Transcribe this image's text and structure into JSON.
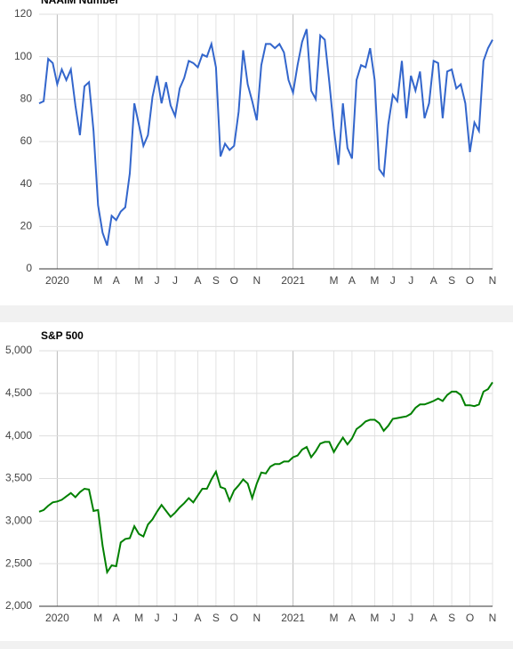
{
  "chart_data": [
    {
      "type": "line",
      "title": "NAAIM Number",
      "color": "#3366cc",
      "grid": true,
      "categories": [
        null,
        null,
        null,
        null,
        "2020",
        null,
        null,
        null,
        null,
        null,
        null,
        null,
        null,
        "M",
        null,
        null,
        null,
        "A",
        null,
        null,
        null,
        null,
        "M",
        null,
        null,
        null,
        "J",
        null,
        null,
        null,
        "J",
        null,
        null,
        null,
        null,
        "A",
        null,
        null,
        null,
        "S",
        null,
        null,
        null,
        "O",
        null,
        null,
        null,
        null,
        "N",
        null,
        null,
        null,
        null,
        null,
        null,
        null,
        "2021",
        null,
        null,
        null,
        null,
        null,
        null,
        null,
        null,
        "M",
        null,
        null,
        null,
        "A",
        null,
        null,
        null,
        null,
        "M",
        null,
        null,
        null,
        "J",
        null,
        null,
        null,
        "J",
        null,
        null,
        null,
        null,
        "A",
        null,
        null,
        null,
        "S",
        null,
        null,
        null,
        "O",
        null,
        null,
        null,
        null,
        "N"
      ],
      "values": [
        78,
        79,
        99,
        97,
        87,
        94,
        89,
        94,
        77,
        63,
        86,
        88,
        65,
        30,
        17,
        11,
        25,
        23,
        27,
        29,
        45,
        78,
        68,
        58,
        63,
        81,
        91,
        78,
        88,
        77,
        72,
        85,
        90,
        98,
        97,
        95,
        101,
        100,
        106,
        95,
        53,
        59,
        56,
        58,
        74,
        103,
        87,
        79,
        70,
        96,
        106,
        106,
        104,
        106,
        102,
        89,
        83,
        96,
        107,
        113,
        84,
        80,
        110,
        108,
        88,
        66,
        49,
        78,
        57,
        52,
        89,
        96,
        95,
        104,
        89,
        47,
        44,
        68,
        82,
        79,
        98,
        71,
        91,
        84,
        93,
        71,
        78,
        98,
        97,
        71,
        93,
        94,
        85,
        87,
        78,
        55,
        69,
        65,
        98,
        104,
        108
      ],
      "ylim": [
        0,
        120
      ],
      "yticks": [
        0,
        20,
        40,
        60,
        80,
        100,
        120
      ]
    },
    {
      "type": "line",
      "title": "S&P 500",
      "color": "#008000",
      "grid": true,
      "categories": [
        null,
        null,
        null,
        null,
        "2020",
        null,
        null,
        null,
        null,
        null,
        null,
        null,
        null,
        "M",
        null,
        null,
        null,
        "A",
        null,
        null,
        null,
        null,
        "M",
        null,
        null,
        null,
        "J",
        null,
        null,
        null,
        "J",
        null,
        null,
        null,
        null,
        "A",
        null,
        null,
        null,
        "S",
        null,
        null,
        null,
        "O",
        null,
        null,
        null,
        null,
        "N",
        null,
        null,
        null,
        null,
        null,
        null,
        null,
        "2021",
        null,
        null,
        null,
        null,
        null,
        null,
        null,
        null,
        "M",
        null,
        null,
        null,
        "A",
        null,
        null,
        null,
        null,
        "M",
        null,
        null,
        null,
        "J",
        null,
        null,
        null,
        "J",
        null,
        null,
        null,
        null,
        "A",
        null,
        null,
        null,
        "S",
        null,
        null,
        null,
        "O",
        null,
        null,
        null,
        null,
        "N"
      ],
      "values": [
        3110,
        3130,
        3180,
        3220,
        3230,
        3250,
        3290,
        3330,
        3280,
        3340,
        3380,
        3370,
        3120,
        3130,
        2710,
        2400,
        2480,
        2470,
        2750,
        2790,
        2800,
        2940,
        2850,
        2820,
        2960,
        3020,
        3110,
        3190,
        3120,
        3050,
        3100,
        3160,
        3210,
        3270,
        3220,
        3300,
        3380,
        3380,
        3490,
        3580,
        3400,
        3380,
        3240,
        3360,
        3420,
        3490,
        3440,
        3270,
        3440,
        3570,
        3560,
        3640,
        3670,
        3670,
        3700,
        3700,
        3750,
        3770,
        3840,
        3870,
        3750,
        3820,
        3910,
        3930,
        3930,
        3810,
        3900,
        3980,
        3900,
        3970,
        4080,
        4120,
        4170,
        4190,
        4190,
        4150,
        4060,
        4120,
        4200,
        4210,
        4220,
        4230,
        4260,
        4330,
        4370,
        4370,
        4390,
        4410,
        4440,
        4410,
        4480,
        4520,
        4520,
        4480,
        4360,
        4360,
        4350,
        4370,
        4520,
        4550,
        4630
      ],
      "ylim": [
        2000,
        5000
      ],
      "yticks": [
        {
          "value": 2000,
          "label": "2,000"
        },
        {
          "value": 2500,
          "label": "2,500"
        },
        {
          "value": 3000,
          "label": "3,000"
        },
        {
          "value": 3500,
          "label": "3,500"
        },
        {
          "value": 4000,
          "label": "4,000"
        },
        {
          "value": 4500,
          "label": "4,500"
        },
        {
          "value": 5000,
          "label": "5,000"
        }
      ]
    }
  ]
}
